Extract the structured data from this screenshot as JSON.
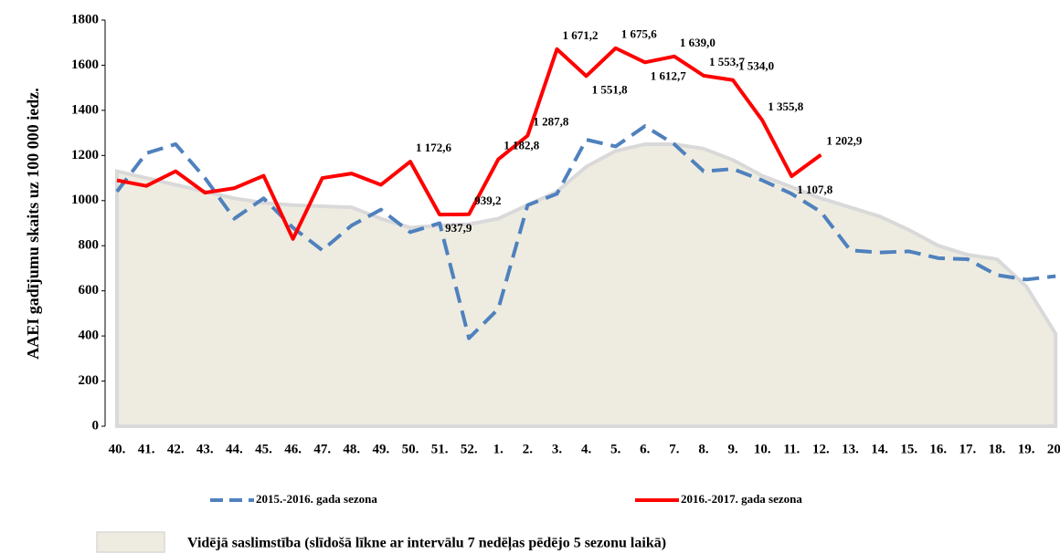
{
  "chart_data": {
    "type": "line",
    "y_axis_label": "AAEI gadījumu skaits uz 100 000 iedz.",
    "categories": [
      "40.",
      "41.",
      "42.",
      "43.",
      "44.",
      "45.",
      "46.",
      "47.",
      "48.",
      "49.",
      "50.",
      "51.",
      "52.",
      "1.",
      "2.",
      "3.",
      "4.",
      "5.",
      "6.",
      "7.",
      "8.",
      "9.",
      "10.",
      "11.",
      "12.",
      "13.",
      "14.",
      "15.",
      "16.",
      "17.",
      "18.",
      "19.",
      "20."
    ],
    "ylim": [
      0,
      1800
    ],
    "yticks": [
      0,
      200,
      400,
      600,
      800,
      1000,
      1200,
      1400,
      1600,
      1800
    ],
    "series": [
      {
        "name": "Vidējā saslimstība (slīdošā līkne ar intervālu 7 nedēļas pēdējo 5 sezonu laikā)",
        "style": "area",
        "color": "#eeece1",
        "values": [
          1130,
          1100,
          1070,
          1040,
          1010,
          990,
          980,
          975,
          970,
          920,
          880,
          890,
          895,
          920,
          980,
          1040,
          1150,
          1220,
          1250,
          1250,
          1230,
          1180,
          1110,
          1060,
          1010,
          970,
          930,
          870,
          800,
          760,
          740,
          620,
          410
        ]
      },
      {
        "name": "2015.-2016. gada sezona",
        "style": "dashed",
        "color": "#4f81bd",
        "values": [
          1040,
          1210,
          1250,
          1100,
          920,
          1010,
          880,
          780,
          890,
          960,
          860,
          900,
          390,
          520,
          980,
          1030,
          1270,
          1240,
          1330,
          1250,
          1130,
          1140,
          1090,
          1030,
          950,
          780,
          770,
          775,
          745,
          740,
          670,
          650,
          665
        ]
      },
      {
        "name": "2016.-2017. gada sezona",
        "style": "solid",
        "color": "#ff0000",
        "values": [
          1090,
          1065,
          1130,
          1035,
          1055,
          1110,
          830,
          1100,
          1120,
          1070,
          1172.6,
          937.9,
          939.2,
          1182.8,
          1287.8,
          1671.2,
          1551.8,
          1675.6,
          1612.7,
          1639.0,
          1553.7,
          1534.0,
          1355.8,
          1107.8,
          1202.9,
          null,
          null,
          null,
          null,
          null,
          null,
          null,
          null
        ],
        "value_labels": [
          null,
          null,
          null,
          null,
          null,
          null,
          null,
          null,
          null,
          null,
          "1 172,6",
          "937,9",
          "939,2",
          "1 182,8",
          "1 287,8",
          "1 671,2",
          "1 551,8",
          "1 675,6",
          "1 612,7",
          "1 639,0",
          "1 553,7",
          "1 534,0",
          "1 355,8",
          "1 107,8",
          "1 202,9",
          null,
          null,
          null,
          null,
          null,
          null,
          null,
          null
        ]
      }
    ]
  }
}
